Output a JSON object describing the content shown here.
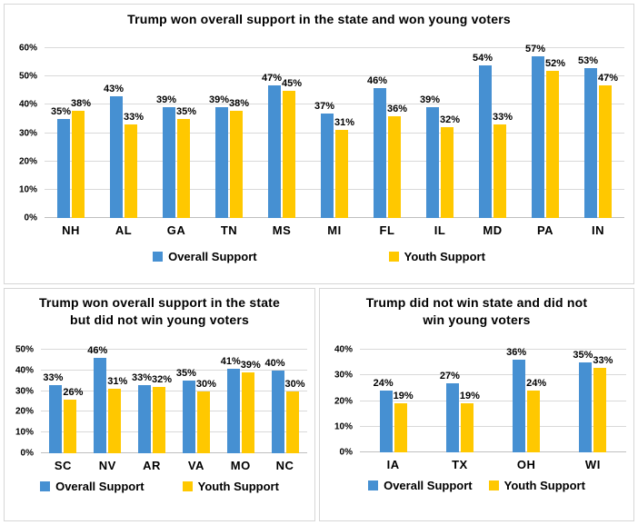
{
  "colors": {
    "overall_bar": "#4690D2",
    "youth_bar": "#FFC800",
    "gridline": "#D9D9D9",
    "axis_line": "#BFBFBF",
    "panel_border": "#D6D6D6",
    "text": "#000000"
  },
  "chart_data": [
    {
      "type": "bar",
      "title": "Trump won overall support in the state and won young voters",
      "title_lines": [
        "Trump won overall support in the state and won young voters"
      ],
      "categories": [
        "NH",
        "AL",
        "GA",
        "TN",
        "MS",
        "MI",
        "FL",
        "IL",
        "MD",
        "PA",
        "IN"
      ],
      "series": [
        {
          "name": "Overall Support",
          "values": [
            35,
            43,
            39,
            39,
            47,
            37,
            46,
            39,
            54,
            57,
            53
          ]
        },
        {
          "name": "Youth Support",
          "values": [
            38,
            33,
            35,
            38,
            45,
            31,
            36,
            32,
            33,
            52,
            47
          ]
        }
      ],
      "ylim": [
        0,
        60
      ],
      "ytick_step": 10,
      "ytick_labels": [
        "0%",
        "10%",
        "20%",
        "30%",
        "40%",
        "50%",
        "60%"
      ],
      "grid": true,
      "legend_position": "bottom",
      "data_label_suffix": "%"
    },
    {
      "type": "bar",
      "title": "Trump won overall support in the state but did not win young voters",
      "title_lines": [
        "Trump won overall support in the state",
        "but did not win young voters"
      ],
      "categories": [
        "SC",
        "NV",
        "AR",
        "VA",
        "MO",
        "NC"
      ],
      "series": [
        {
          "name": "Overall Support",
          "values": [
            33,
            46,
            33,
            35,
            41,
            40
          ]
        },
        {
          "name": "Youth Support",
          "values": [
            26,
            31,
            32,
            30,
            39,
            30
          ]
        }
      ],
      "ylim": [
        0,
        50
      ],
      "ytick_step": 10,
      "ytick_labels": [
        "0%",
        "10%",
        "20%",
        "30%",
        "40%",
        "50%"
      ],
      "grid": true,
      "legend_position": "bottom",
      "data_label_suffix": "%"
    },
    {
      "type": "bar",
      "title": "Trump did not win state and did not win young voters",
      "title_lines": [
        "Trump did not win state and did not",
        "win young voters"
      ],
      "categories": [
        "IA",
        "TX",
        "OH",
        "WI"
      ],
      "series": [
        {
          "name": "Overall Support",
          "values": [
            24,
            27,
            36,
            35
          ]
        },
        {
          "name": "Youth Support",
          "values": [
            19,
            19,
            24,
            33
          ]
        }
      ],
      "ylim": [
        0,
        40
      ],
      "ytick_step": 10,
      "ytick_labels": [
        "0%",
        "10%",
        "20%",
        "30%",
        "40%"
      ],
      "grid": true,
      "legend_position": "bottom",
      "data_label_suffix": "%"
    }
  ]
}
